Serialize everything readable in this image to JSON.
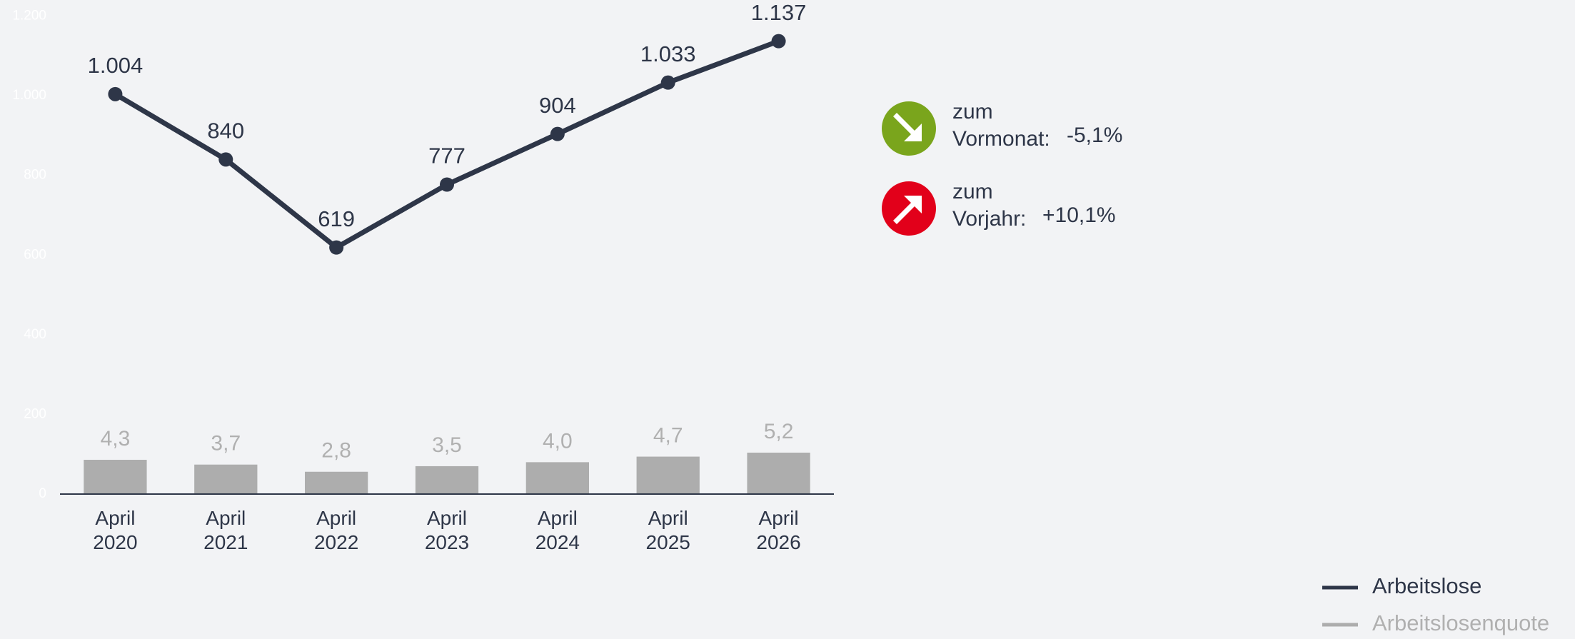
{
  "chart_data": {
    "type": "line",
    "categories": [
      "April 2020",
      "April 2021",
      "April 2022",
      "April 2023",
      "April 2024",
      "April 2025",
      "April 2026"
    ],
    "series": [
      {
        "name": "Arbeitslose",
        "color": "#2e3648",
        "type": "line",
        "values": [
          1004,
          840,
          619,
          777,
          904,
          1033,
          1137
        ],
        "value_labels": [
          "1.004",
          "840",
          "619",
          "777",
          "904",
          "1.033",
          "1.137"
        ]
      },
      {
        "name": "Arbeitslosenquote",
        "color": "#adadad",
        "type": "bar",
        "axis": "y2",
        "values": [
          4.3,
          3.7,
          2.8,
          3.5,
          4.0,
          4.7,
          5.2
        ],
        "value_labels": [
          "4,3",
          "3,7",
          "2,8",
          "3,5",
          "4,0",
          "4,7",
          "5,2"
        ]
      }
    ],
    "ylim": [
      0,
      1200
    ],
    "yticks": [
      0,
      200,
      400,
      600,
      800,
      {
        "value": 1000,
        "label": "1.000"
      },
      {
        "value": 1200,
        "label": "1.200"
      }
    ],
    "y2lim": [
      0,
      60
    ],
    "annotations": [
      {
        "line1": "zum",
        "line2": "Vormonat:",
        "value": "-5,1%",
        "color": "#7aa51c"
      },
      {
        "line1": "zum",
        "line2": "Vorjahr:",
        "value": "+10,1%",
        "color": "#e2001a"
      }
    ],
    "legend": "bottom-right"
  }
}
